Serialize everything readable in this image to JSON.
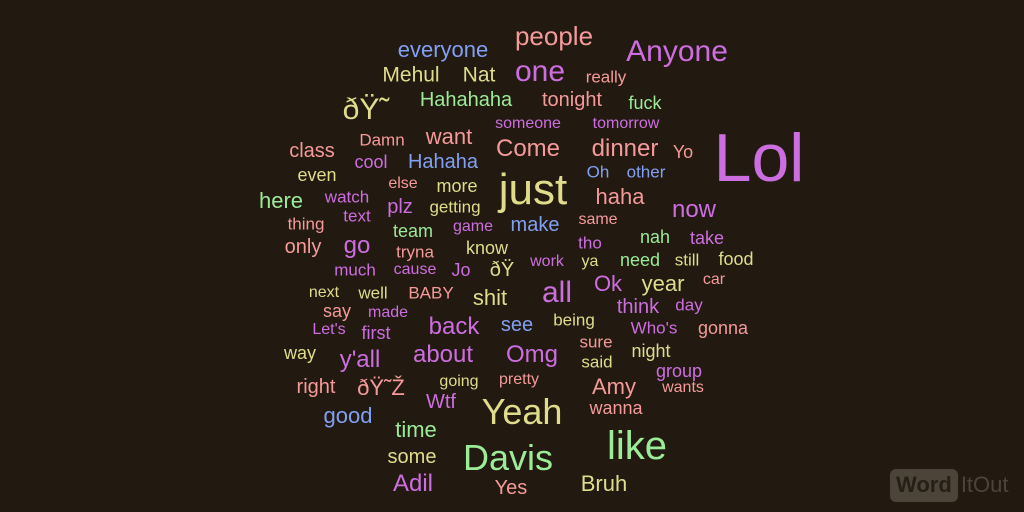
{
  "colors": {
    "background": "#221a10",
    "pink": "#f59a9a",
    "purple": "#cd6ee0",
    "yellow": "#e0dc8c",
    "green": "#9ceb98",
    "blue": "#82a0f2"
  },
  "words": [
    "people",
    "everyone",
    "Anyone",
    "Mehul",
    "Nat",
    "one",
    "really",
    "ðŸ˜",
    "Hahahaha",
    "tonight",
    "fuck",
    "someone",
    "tomorrow",
    "Damn",
    "want",
    "Lol",
    "class",
    "cool",
    "Hahaha",
    "Come",
    "dinner",
    "Yo",
    "even",
    "else",
    "more",
    "just",
    "Oh",
    "other",
    "watch",
    "here",
    "text",
    "plz",
    "getting",
    "haha",
    "now",
    "thing",
    "team",
    "game",
    "make",
    "same",
    "only",
    "go",
    "tryna",
    "know",
    "tho",
    "nah",
    "take",
    "much",
    "cause",
    "Jo",
    "ðŸ",
    "work",
    "ya",
    "need",
    "still",
    "food",
    "next",
    "well",
    "BABY",
    "shit",
    "all",
    "Ok",
    "year",
    "car",
    "say",
    "made",
    "think",
    "day",
    "Let's",
    "first",
    "back",
    "see",
    "being",
    "Who's",
    "gonna",
    "way",
    "about",
    "Omg",
    "sure",
    "night",
    "y'all",
    "said",
    "right",
    "ðŸ˜Ž",
    "going",
    "pretty",
    "Amy",
    "group",
    "wants",
    "good",
    "Wtf",
    "Yeah",
    "wanna",
    "like",
    "time",
    "some",
    "Davis",
    "Adil",
    "Yes",
    "Bruh"
  ],
  "logo": {
    "word": "Word",
    "it": "It",
    "out": "Out"
  }
}
